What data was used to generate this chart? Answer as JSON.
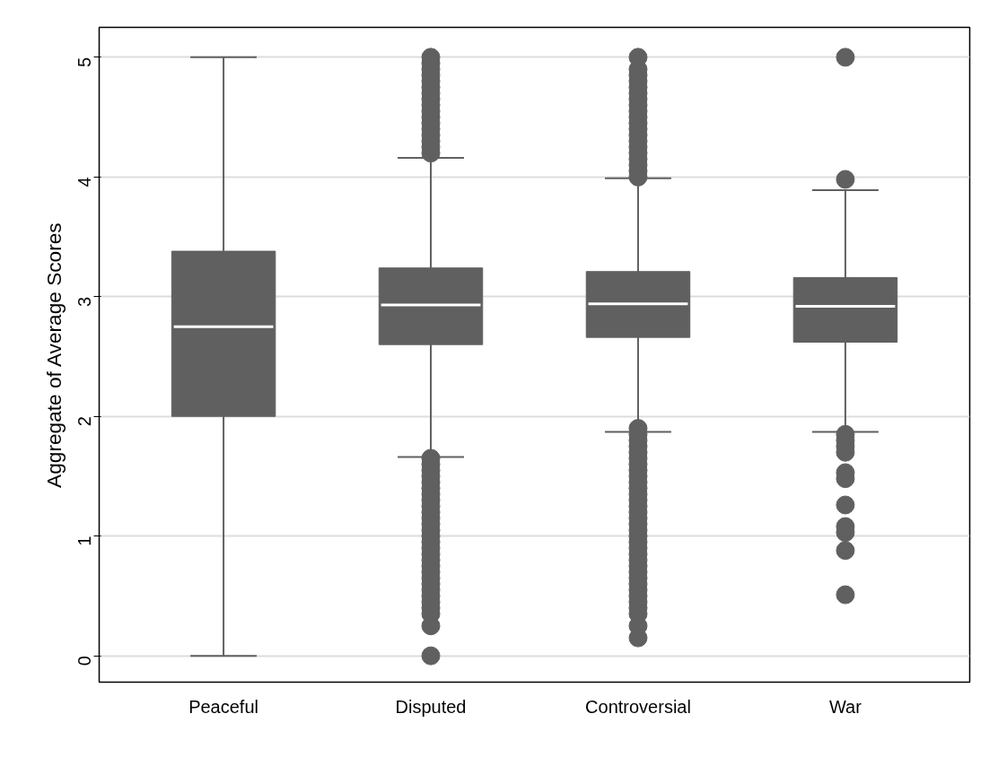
{
  "chart_data": {
    "type": "box",
    "ylabel": "Aggregate of Average Scores",
    "categories": [
      "Peaceful",
      "Disputed",
      "Controversial",
      "War"
    ],
    "color": "#606060",
    "ylim": [
      -0.22,
      5.25
    ],
    "yticks": [
      0,
      1,
      2,
      3,
      4,
      5
    ],
    "grid": "y",
    "boxes": [
      {
        "low": 0,
        "q1": 2.0,
        "median": 2.75,
        "q3": 3.38,
        "high": 5.0
      },
      {
        "low": 1.66,
        "q1": 2.6,
        "median": 2.93,
        "q3": 3.24,
        "high": 4.16,
        "outliers": [
          4.2,
          4.25,
          4.3,
          4.35,
          4.4,
          4.45,
          4.5,
          4.55,
          4.6,
          4.65,
          4.7,
          4.75,
          4.8,
          4.85,
          4.9,
          4.95,
          5.0,
          1.65,
          1.6,
          1.55,
          1.5,
          1.45,
          1.4,
          1.35,
          1.3,
          1.25,
          1.2,
          1.15,
          1.1,
          1.05,
          1.0,
          0.95,
          0.9,
          0.85,
          0.8,
          0.75,
          0.7,
          0.65,
          0.6,
          0.55,
          0.5,
          0.45,
          0.4,
          0.35,
          0.25,
          0.0
        ]
      },
      {
        "low": 1.87,
        "q1": 2.66,
        "median": 2.94,
        "q3": 3.21,
        "high": 3.99,
        "outliers": [
          4.0,
          4.05,
          4.1,
          4.15,
          4.2,
          4.25,
          4.3,
          4.35,
          4.4,
          4.45,
          4.5,
          4.55,
          4.6,
          4.65,
          4.7,
          4.75,
          4.8,
          4.85,
          4.9,
          5.0,
          1.9,
          1.85,
          1.8,
          1.75,
          1.7,
          1.65,
          1.6,
          1.55,
          1.5,
          1.45,
          1.4,
          1.35,
          1.3,
          1.25,
          1.2,
          1.15,
          1.1,
          1.05,
          1.0,
          0.95,
          0.9,
          0.85,
          0.8,
          0.75,
          0.7,
          0.65,
          0.6,
          0.55,
          0.5,
          0.45,
          0.4,
          0.35,
          0.25,
          0.15
        ]
      },
      {
        "low": 1.87,
        "q1": 2.62,
        "median": 2.92,
        "q3": 3.16,
        "high": 3.89,
        "outliers": [
          5.0,
          3.98,
          1.85,
          1.8,
          1.75,
          1.7,
          1.53,
          1.48,
          1.26,
          1.08,
          1.03,
          0.88,
          0.51
        ]
      }
    ]
  }
}
